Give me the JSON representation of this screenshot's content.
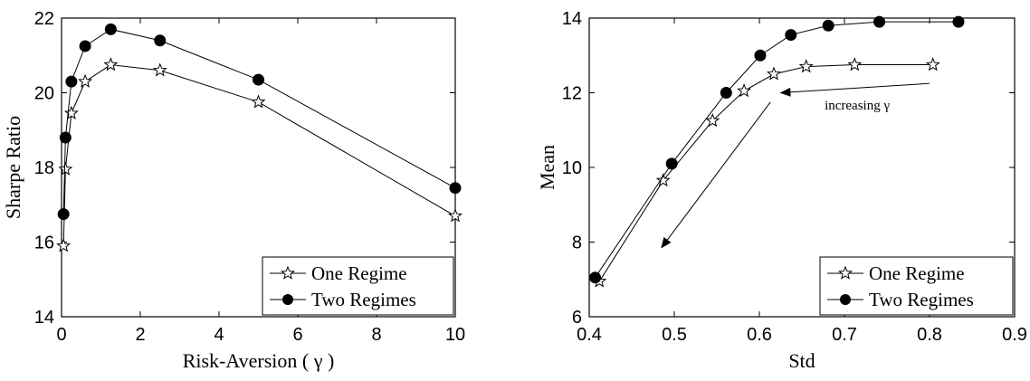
{
  "chart_data": [
    {
      "type": "line",
      "xlabel": "Risk-Aversion ( γ )",
      "ylabel": "Sharpe Ratio",
      "xlim": [
        0,
        10
      ],
      "ylim": [
        14,
        22
      ],
      "xticks": [
        "0",
        "2",
        "4",
        "6",
        "8",
        "10"
      ],
      "yticks": [
        "14",
        "16",
        "18",
        "20",
        "22"
      ],
      "xtick_values": [
        0,
        2,
        4,
        6,
        8,
        10
      ],
      "ytick_values": [
        14,
        16,
        18,
        20,
        22
      ],
      "legend_placement": "bottom-right",
      "grid": false,
      "series": [
        {
          "name": "One Regime",
          "marker": "star",
          "x": [
            0.05,
            0.1,
            0.25,
            0.6,
            1.25,
            2.5,
            5,
            10
          ],
          "y": [
            15.9,
            17.95,
            19.45,
            20.3,
            20.75,
            20.6,
            19.75,
            16.7
          ]
        },
        {
          "name": "Two Regimes",
          "marker": "filled-circle",
          "x": [
            0.05,
            0.1,
            0.25,
            0.6,
            1.25,
            2.5,
            5,
            10
          ],
          "y": [
            16.75,
            18.8,
            20.3,
            21.25,
            21.7,
            21.4,
            20.35,
            17.45
          ]
        }
      ]
    },
    {
      "type": "line",
      "xlabel": "Std",
      "ylabel": "Mean",
      "xlim": [
        0.4,
        0.9
      ],
      "ylim": [
        6,
        14
      ],
      "xticks": [
        "0.4",
        "0.5",
        "0.6",
        "0.7",
        "0.8",
        "0.9"
      ],
      "yticks": [
        "6",
        "8",
        "10",
        "12",
        "14"
      ],
      "xtick_values": [
        0.4,
        0.5,
        0.6,
        0.7,
        0.8,
        0.9
      ],
      "ytick_values": [
        6,
        8,
        10,
        12,
        14
      ],
      "legend_placement": "bottom-right",
      "grid": false,
      "annotation": {
        "text": "increasing γ",
        "x": 0.715,
        "y": 11.55
      },
      "arrows": [
        {
          "from": [
            0.8,
            12.25
          ],
          "to": [
            0.625,
            12.0
          ]
        },
        {
          "from": [
            0.613,
            11.75
          ],
          "to": [
            0.485,
            7.85
          ]
        }
      ],
      "series": [
        {
          "name": "One Regime",
          "marker": "star",
          "x": [
            0.412,
            0.487,
            0.545,
            0.582,
            0.617,
            0.655,
            0.712,
            0.804
          ],
          "y": [
            6.95,
            9.65,
            11.25,
            12.05,
            12.5,
            12.7,
            12.75,
            12.75
          ]
        },
        {
          "name": "Two Regimes",
          "marker": "filled-circle",
          "x": [
            0.407,
            0.497,
            0.561,
            0.601,
            0.637,
            0.681,
            0.741,
            0.834
          ],
          "y": [
            7.05,
            10.1,
            12.0,
            13.0,
            13.55,
            13.8,
            13.9,
            13.9
          ]
        }
      ]
    }
  ]
}
